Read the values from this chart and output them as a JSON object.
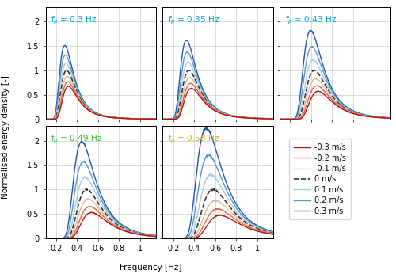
{
  "fp_values": [
    0.3,
    0.35,
    0.43,
    0.49,
    0.58
  ],
  "fp_label_texts": [
    "f$_p$ = 0.3 Hz",
    "f$_p$ = 0.35 Hz",
    "f$_p$ = 0.43 Hz",
    "f$_p$ = 0.49 Hz",
    "f$_p$ = 0.58 Hz"
  ],
  "fp_label_colors": [
    "#00aadd",
    "#00aadd",
    "#00aadd",
    "#33bb33",
    "#ddaa00"
  ],
  "currents": [
    -0.3,
    -0.2,
    -0.1,
    0.0,
    0.1,
    0.2,
    0.3
  ],
  "line_colors": [
    "#bb1111",
    "#dd6644",
    "#ddbb99",
    "#333333",
    "#aaccdd",
    "#5599cc",
    "#2255aa"
  ],
  "line_styles": [
    "-",
    "-",
    "-",
    "--",
    "-",
    "-",
    "-"
  ],
  "line_widths": [
    1.0,
    1.0,
    1.0,
    1.2,
    1.0,
    1.0,
    1.0
  ],
  "legend_labels": [
    "-0.3 m/s",
    "-0.2 m/s",
    "-0.1 m/s",
    "0 m/s",
    "0.1 m/s",
    "0.2 m/s",
    "0.3 m/s"
  ],
  "ylabel": "Normalised energy density [-]",
  "xlabel": "Frequency [Hz]",
  "xlim": [
    0.1,
    1.15
  ],
  "ylim": [
    0,
    2.3
  ],
  "xticks": [
    0.2,
    0.4,
    0.6,
    0.8,
    1.0
  ],
  "yticks": [
    0,
    0.5,
    1.0,
    1.5,
    2.0
  ],
  "figsize": [
    5.0,
    3.46
  ],
  "dpi": 100
}
